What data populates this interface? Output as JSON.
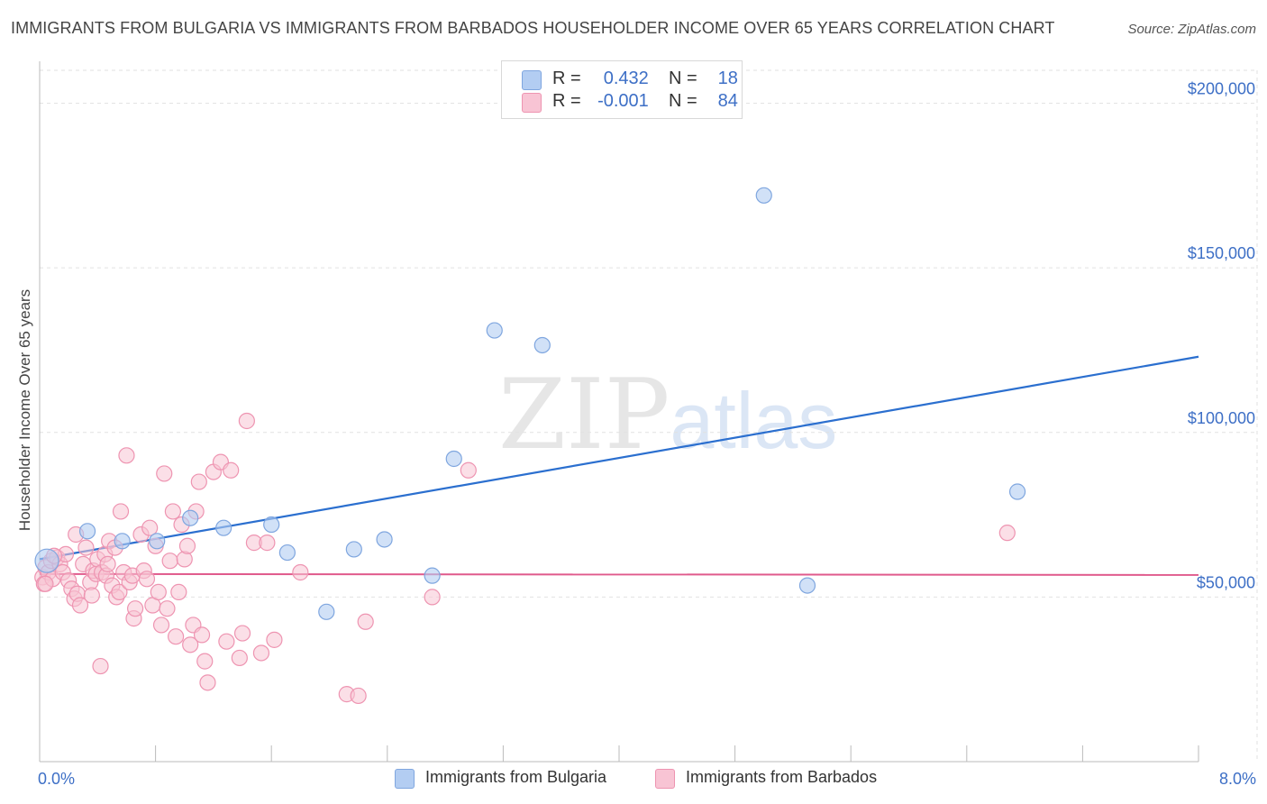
{
  "header": {
    "title": "IMMIGRANTS FROM BULGARIA VS IMMIGRANTS FROM BARBADOS HOUSEHOLDER INCOME OVER 65 YEARS CORRELATION CHART",
    "source": "Source: ZipAtlas.com"
  },
  "watermark": {
    "zip": "ZIP",
    "atlas": "atlas"
  },
  "legend": {
    "rows": [
      {
        "r_label": "R =",
        "r_value": "0.432",
        "n_label": "N =",
        "n_value": "18",
        "color": "#a9c7f0"
      },
      {
        "r_label": "R =",
        "r_value": "-0.001",
        "n_label": "N =",
        "n_value": "84",
        "color": "#f6b8cc"
      }
    ]
  },
  "colors": {
    "bulgaria_fill": "#b3cdf2",
    "bulgaria_stroke": "#7fa6df",
    "bulgaria_line": "#2b6fcf",
    "barbados_fill": "#f8c4d4",
    "barbados_stroke": "#ee94b1",
    "barbados_line": "#e05a8c",
    "axis_text": "#3d6fc6",
    "grid": "#e2e2e2"
  },
  "chart_data": {
    "type": "scatter",
    "title": "IMMIGRANTS FROM BULGARIA VS IMMIGRANTS FROM BARBADOS HOUSEHOLDER INCOME OVER 65 YEARS CORRELATION CHART",
    "xlabel": "",
    "ylabel": "Householder Income Over 65 years",
    "xlim": [
      0,
      8
    ],
    "ylim": [
      0,
      210000
    ],
    "x_tick_labels": [
      "0.0%",
      "8.0%"
    ],
    "y_ticks": [
      50000,
      100000,
      150000,
      200000
    ],
    "y_tick_labels": [
      "$50,000",
      "$100,000",
      "$150,000",
      "$200,000"
    ],
    "grid": true,
    "legend_position": "bottom-center",
    "series": [
      {
        "name": "Immigrants from Bulgaria",
        "trend": [
          [
            0,
            61500
          ],
          [
            8,
            123000
          ]
        ],
        "points": [
          [
            0.05,
            61000
          ],
          [
            0.33,
            70000
          ],
          [
            0.57,
            67000
          ],
          [
            0.81,
            67000
          ],
          [
            1.04,
            74000
          ],
          [
            1.27,
            71000
          ],
          [
            1.6,
            72000
          ],
          [
            1.71,
            63500
          ],
          [
            1.98,
            45500
          ],
          [
            2.17,
            64500
          ],
          [
            2.38,
            67500
          ],
          [
            2.71,
            56500
          ],
          [
            2.86,
            92000
          ],
          [
            3.14,
            131000
          ],
          [
            3.47,
            126500
          ],
          [
            5.0,
            172000
          ],
          [
            5.3,
            53500
          ],
          [
            6.75,
            82000
          ]
        ]
      },
      {
        "name": "Immigrants from Barbados",
        "trend": [
          [
            0,
            57000
          ],
          [
            8,
            56700
          ]
        ],
        "points": [
          [
            0.02,
            56000
          ],
          [
            0.03,
            54000
          ],
          [
            0.04,
            59000
          ],
          [
            0.06,
            57500
          ],
          [
            0.08,
            61000
          ],
          [
            0.09,
            55500
          ],
          [
            0.12,
            62000
          ],
          [
            0.14,
            60000
          ],
          [
            0.16,
            57500
          ],
          [
            0.18,
            63000
          ],
          [
            0.2,
            55000
          ],
          [
            0.22,
            52500
          ],
          [
            0.24,
            49500
          ],
          [
            0.26,
            51000
          ],
          [
            0.25,
            69000
          ],
          [
            0.28,
            47500
          ],
          [
            0.3,
            60000
          ],
          [
            0.32,
            65000
          ],
          [
            0.35,
            54500
          ],
          [
            0.36,
            50500
          ],
          [
            0.37,
            58000
          ],
          [
            0.39,
            57000
          ],
          [
            0.4,
            61500
          ],
          [
            0.42,
            29000
          ],
          [
            0.43,
            57500
          ],
          [
            0.45,
            63000
          ],
          [
            0.46,
            56500
          ],
          [
            0.47,
            60000
          ],
          [
            0.48,
            67000
          ],
          [
            0.5,
            53500
          ],
          [
            0.52,
            65000
          ],
          [
            0.53,
            50000
          ],
          [
            0.55,
            51500
          ],
          [
            0.56,
            76000
          ],
          [
            0.58,
            57500
          ],
          [
            0.6,
            93000
          ],
          [
            0.62,
            54500
          ],
          [
            0.64,
            56500
          ],
          [
            0.65,
            43500
          ],
          [
            0.66,
            46500
          ],
          [
            0.7,
            69000
          ],
          [
            0.72,
            58000
          ],
          [
            0.74,
            55500
          ],
          [
            0.76,
            71000
          ],
          [
            0.78,
            47500
          ],
          [
            0.8,
            65500
          ],
          [
            0.82,
            51500
          ],
          [
            0.84,
            41500
          ],
          [
            0.86,
            87500
          ],
          [
            0.88,
            46500
          ],
          [
            0.9,
            61000
          ],
          [
            0.92,
            76000
          ],
          [
            0.94,
            38000
          ],
          [
            0.96,
            51500
          ],
          [
            0.98,
            72000
          ],
          [
            1.0,
            61500
          ],
          [
            1.02,
            65500
          ],
          [
            1.04,
            35500
          ],
          [
            1.06,
            41500
          ],
          [
            1.08,
            76000
          ],
          [
            1.1,
            85000
          ],
          [
            1.12,
            38500
          ],
          [
            1.14,
            30500
          ],
          [
            1.16,
            24000
          ],
          [
            1.2,
            88000
          ],
          [
            1.25,
            91000
          ],
          [
            1.29,
            36500
          ],
          [
            1.32,
            88500
          ],
          [
            1.38,
            31500
          ],
          [
            1.4,
            39000
          ],
          [
            1.43,
            103500
          ],
          [
            1.48,
            66500
          ],
          [
            1.53,
            33000
          ],
          [
            1.57,
            66500
          ],
          [
            1.62,
            37000
          ],
          [
            1.8,
            57500
          ],
          [
            2.12,
            20500
          ],
          [
            2.2,
            20000
          ],
          [
            2.25,
            42500
          ],
          [
            2.71,
            50000
          ],
          [
            2.96,
            88500
          ],
          [
            6.68,
            69500
          ],
          [
            0.1,
            62500
          ],
          [
            0.04,
            54000
          ]
        ]
      }
    ]
  }
}
